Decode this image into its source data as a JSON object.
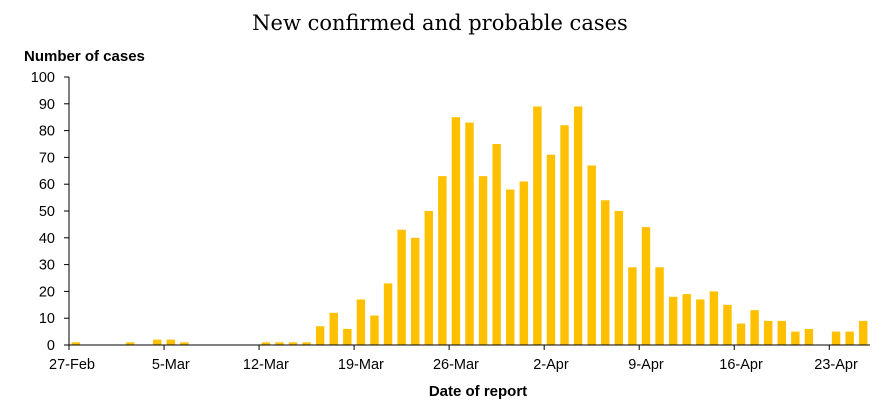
{
  "chart_data": {
    "type": "bar",
    "title": "New confirmed and probable cases",
    "ylabel": "Number of cases",
    "xlabel": "Date of report",
    "ylim": [
      0,
      100
    ],
    "yticks": [
      0,
      10,
      20,
      30,
      40,
      50,
      60,
      70,
      80,
      90,
      100
    ],
    "bar_color": "#FFC000",
    "categories": [
      "27-Feb",
      "28-Feb",
      "29-Feb",
      "1-Mar",
      "2-Mar",
      "3-Mar",
      "4-Mar",
      "5-Mar",
      "6-Mar",
      "7-Mar",
      "8-Mar",
      "9-Mar",
      "10-Mar",
      "11-Mar",
      "12-Mar",
      "13-Mar",
      "14-Mar",
      "15-Mar",
      "16-Mar",
      "17-Mar",
      "18-Mar",
      "19-Mar",
      "20-Mar",
      "21-Mar",
      "22-Mar",
      "23-Mar",
      "24-Mar",
      "25-Mar",
      "26-Mar",
      "27-Mar",
      "28-Mar",
      "29-Mar",
      "30-Mar",
      "31-Mar",
      "1-Apr",
      "2-Apr",
      "3-Apr",
      "4-Apr",
      "5-Apr",
      "6-Apr",
      "7-Apr",
      "8-Apr",
      "9-Apr",
      "10-Apr",
      "11-Apr",
      "12-Apr",
      "13-Apr",
      "14-Apr",
      "15-Apr",
      "16-Apr",
      "17-Apr",
      "18-Apr",
      "19-Apr",
      "20-Apr",
      "21-Apr",
      "22-Apr",
      "23-Apr",
      "24-Apr",
      "25-Apr"
    ],
    "values": [
      1,
      0,
      0,
      0,
      1,
      0,
      2,
      2,
      1,
      0,
      0,
      0,
      0,
      0,
      1,
      1,
      1,
      1,
      7,
      12,
      6,
      17,
      11,
      23,
      43,
      40,
      50,
      63,
      85,
      83,
      63,
      75,
      58,
      61,
      89,
      71,
      82,
      89,
      67,
      54,
      50,
      29,
      44,
      29,
      18,
      19,
      17,
      20,
      15,
      8,
      13,
      9,
      9,
      5,
      6,
      0,
      5,
      5,
      9
    ],
    "xtick_labels": [
      "27-Feb",
      "5-Mar",
      "12-Mar",
      "19-Mar",
      "26-Mar",
      "2-Apr",
      "9-Apr",
      "16-Apr",
      "23-Apr"
    ],
    "xtick_every": 7,
    "grid": false,
    "legend": "none"
  }
}
